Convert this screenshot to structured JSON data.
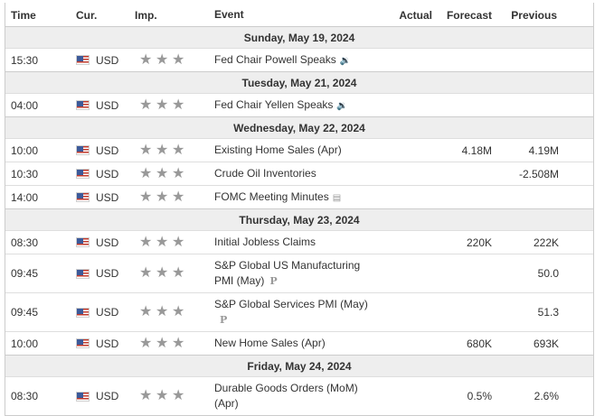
{
  "header": {
    "time": "Time",
    "currency": "Cur.",
    "importance": "Imp.",
    "event": "Event",
    "actual": "Actual",
    "forecast": "Forecast",
    "previous": "Previous"
  },
  "days": [
    {
      "date": "Sunday, May 19, 2024",
      "events": [
        {
          "time": "15:30",
          "currency": "USD",
          "event": "Fed Chair Powell Speaks",
          "icon": "speaker-icon",
          "actual": "",
          "forecast": "",
          "previous": ""
        }
      ]
    },
    {
      "date": "Tuesday, May 21, 2024",
      "events": [
        {
          "time": "04:00",
          "currency": "USD",
          "event": "Fed Chair Yellen Speaks",
          "icon": "speaker-icon",
          "actual": "",
          "forecast": "",
          "previous": ""
        }
      ]
    },
    {
      "date": "Wednesday, May 22, 2024",
      "events": [
        {
          "time": "10:00",
          "currency": "USD",
          "event": "Existing Home Sales (Apr)",
          "icon": "",
          "actual": "",
          "forecast": "4.18M",
          "previous": "4.19M"
        },
        {
          "time": "10:30",
          "currency": "USD",
          "event": "Crude Oil Inventories",
          "icon": "",
          "actual": "",
          "forecast": "",
          "previous": "-2.508M"
        },
        {
          "time": "14:00",
          "currency": "USD",
          "event": "FOMC Meeting Minutes",
          "icon": "document-icon",
          "actual": "",
          "forecast": "",
          "previous": ""
        }
      ]
    },
    {
      "date": "Thursday, May 23, 2024",
      "events": [
        {
          "time": "08:30",
          "currency": "USD",
          "event": "Initial Jobless Claims",
          "icon": "",
          "actual": "",
          "forecast": "220K",
          "previous": "222K"
        },
        {
          "time": "09:45",
          "currency": "USD",
          "event": "S&P Global US Manufacturing PMI (May)",
          "icon": "preliminary-icon",
          "actual": "",
          "forecast": "",
          "previous": "50.0"
        },
        {
          "time": "09:45",
          "currency": "USD",
          "event": "S&P Global Services PMI (May)",
          "icon": "preliminary-icon",
          "actual": "",
          "forecast": "",
          "previous": "51.3"
        },
        {
          "time": "10:00",
          "currency": "USD",
          "event": "New Home Sales (Apr)",
          "icon": "",
          "actual": "",
          "forecast": "680K",
          "previous": "693K"
        }
      ]
    },
    {
      "date": "Friday, May 24, 2024",
      "events": [
        {
          "time": "08:30",
          "currency": "USD",
          "event": "Durable Goods Orders (MoM) (Apr)",
          "icon": "",
          "actual": "",
          "forecast": "0.5%",
          "previous": "2.6%"
        }
      ]
    }
  ],
  "importance_stars": 3,
  "icon_glyphs": {
    "speaker-icon": "🔉",
    "document-icon": "▤",
    "preliminary-icon": "P"
  }
}
